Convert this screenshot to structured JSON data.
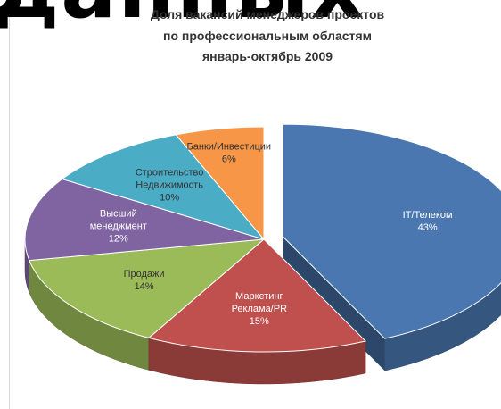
{
  "heading_fragment": "данных",
  "chart_data": {
    "type": "pie",
    "title_lines": [
      "Доля вакансий менеджеров проектов",
      "по профессиональным областям",
      "январь-октябрь 2009"
    ],
    "slices": [
      {
        "label_lines": [
          "IT/Телеком"
        ],
        "value": 43,
        "value_label": "43%",
        "color": "#4a77b0"
      },
      {
        "label_lines": [
          "Маркетинг",
          "Реклама/PR"
        ],
        "value": 15,
        "value_label": "15%",
        "color": "#c0504d"
      },
      {
        "label_lines": [
          "Продажи"
        ],
        "value": 14,
        "value_label": "14%",
        "color": "#9bbb59"
      },
      {
        "label_lines": [
          "Высший",
          "менеджмент"
        ],
        "value": 12,
        "value_label": "12%",
        "color": "#8064a2"
      },
      {
        "label_lines": [
          "Строительство",
          "Недвижимость"
        ],
        "value": 10,
        "value_label": "10%",
        "color": "#4bacc6"
      },
      {
        "label_lines": [
          "Банки/Инвестиции"
        ],
        "value": 6,
        "value_label": "6%",
        "color": "#f79646"
      }
    ],
    "exploded": [
      "IT/Телеком"
    ],
    "style": "3d-pie",
    "legend": "none"
  }
}
